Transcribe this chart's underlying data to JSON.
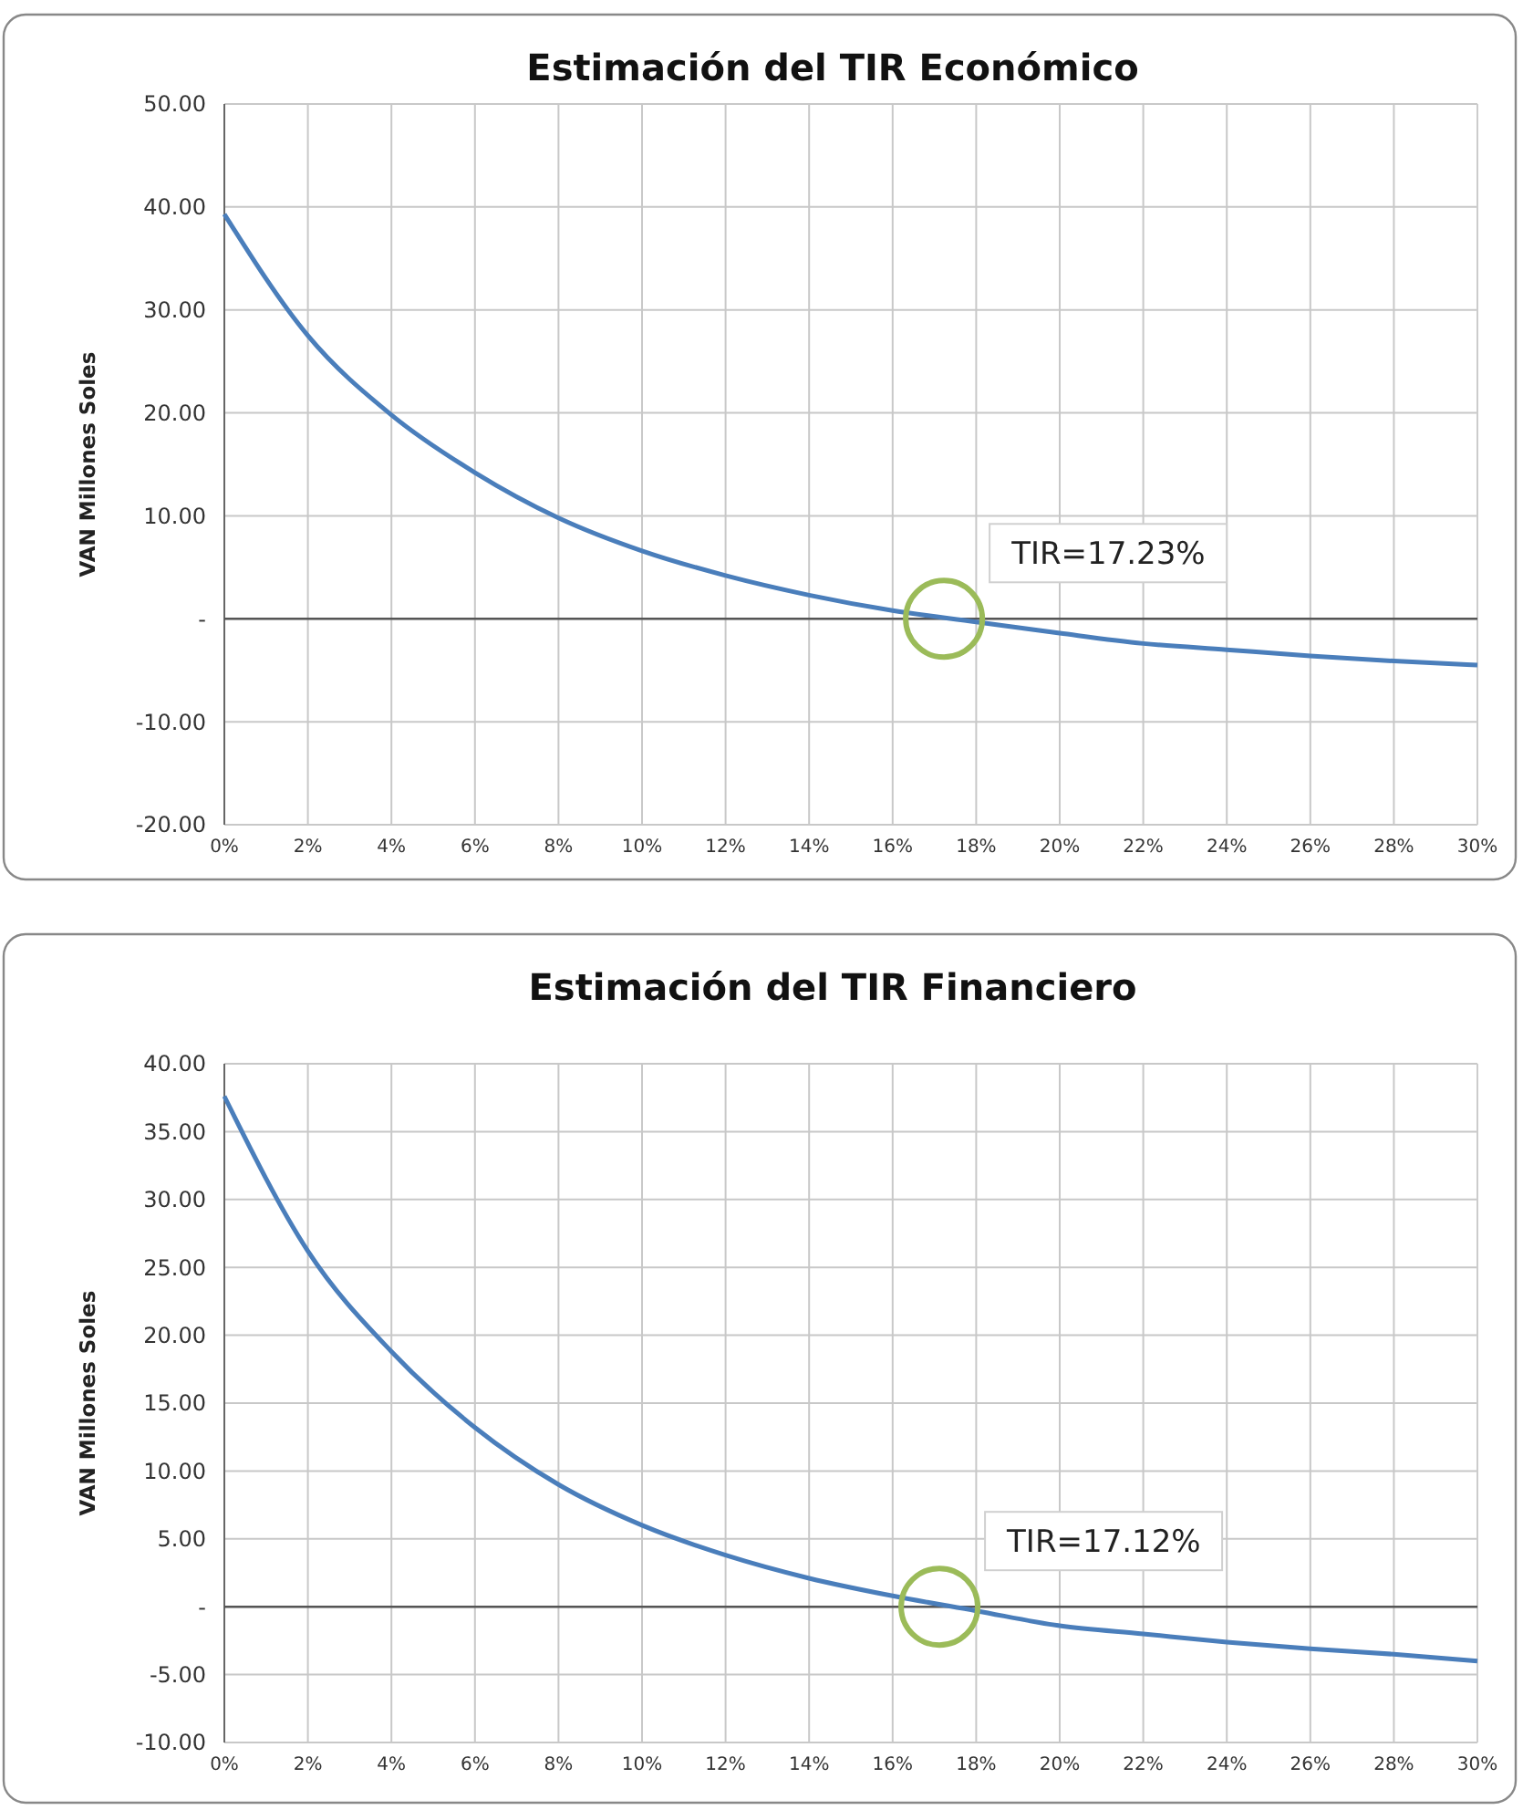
{
  "chart_data": [
    {
      "type": "line",
      "title": "Estimación del TIR Económico",
      "ylabel": "VAN Millones Soles",
      "x": [
        0,
        2,
        4,
        6,
        8,
        10,
        12,
        14,
        16,
        18,
        20,
        22,
        24,
        26,
        28,
        30
      ],
      "series": [
        {
          "color": "#4a7ebb",
          "values": [
            39.3,
            27.5,
            19.8,
            14.2,
            9.8,
            6.6,
            4.2,
            2.3,
            0.8,
            -0.3,
            -1.4,
            -2.4,
            -3.0,
            -3.6,
            -4.1,
            -4.5
          ]
        }
      ],
      "xlim": [
        0,
        30
      ],
      "xticks": [
        {
          "value": 0,
          "label": "0%"
        },
        {
          "value": 2,
          "label": "2%"
        },
        {
          "value": 4,
          "label": "4%"
        },
        {
          "value": 6,
          "label": "6%"
        },
        {
          "value": 8,
          "label": "8%"
        },
        {
          "value": 10,
          "label": "10%"
        },
        {
          "value": 12,
          "label": "12%"
        },
        {
          "value": 14,
          "label": "14%"
        },
        {
          "value": 16,
          "label": "16%"
        },
        {
          "value": 18,
          "label": "18%"
        },
        {
          "value": 20,
          "label": "20%"
        },
        {
          "value": 22,
          "label": "22%"
        },
        {
          "value": 24,
          "label": "24%"
        },
        {
          "value": 26,
          "label": "26%"
        },
        {
          "value": 28,
          "label": "28%"
        },
        {
          "value": 30,
          "label": "30%"
        }
      ],
      "ylim": [
        -20,
        50
      ],
      "yticks": [
        {
          "value": -20,
          "label": "-20.00"
        },
        {
          "value": -10,
          "label": "-10.00"
        },
        {
          "value": 0,
          "label": "-"
        },
        {
          "value": 10,
          "label": "10.00"
        },
        {
          "value": 20,
          "label": "20.00"
        },
        {
          "value": 30,
          "label": "30.00"
        },
        {
          "value": 40,
          "label": "40.00"
        },
        {
          "value": 50,
          "label": "50.00"
        }
      ],
      "grid": true,
      "marker": "none",
      "line_style": "solid",
      "annotations": [
        {
          "text": "TIR=17.23%",
          "x": 17.23,
          "y": 0
        }
      ]
    },
    {
      "type": "line",
      "title": "Estimación del TIR Financiero",
      "ylabel": "VAN Millones Soles",
      "x": [
        0,
        2,
        4,
        6,
        8,
        10,
        12,
        14,
        16,
        18,
        20,
        22,
        24,
        26,
        28,
        30
      ],
      "series": [
        {
          "color": "#4a7ebb",
          "values": [
            37.6,
            26.2,
            18.8,
            13.2,
            9.0,
            6.0,
            3.8,
            2.1,
            0.8,
            -0.3,
            -1.4,
            -2.0,
            -2.6,
            -3.1,
            -3.5,
            -4.0
          ]
        }
      ],
      "xlim": [
        0,
        30
      ],
      "xticks": [
        {
          "value": 0,
          "label": "0%"
        },
        {
          "value": 2,
          "label": "2%"
        },
        {
          "value": 4,
          "label": "4%"
        },
        {
          "value": 6,
          "label": "6%"
        },
        {
          "value": 8,
          "label": "8%"
        },
        {
          "value": 10,
          "label": "10%"
        },
        {
          "value": 12,
          "label": "12%"
        },
        {
          "value": 14,
          "label": "14%"
        },
        {
          "value": 16,
          "label": "16%"
        },
        {
          "value": 18,
          "label": "18%"
        },
        {
          "value": 20,
          "label": "20%"
        },
        {
          "value": 22,
          "label": "22%"
        },
        {
          "value": 24,
          "label": "24%"
        },
        {
          "value": 26,
          "label": "26%"
        },
        {
          "value": 28,
          "label": "28%"
        },
        {
          "value": 30,
          "label": "30%"
        }
      ],
      "ylim": [
        -10,
        40
      ],
      "yticks": [
        {
          "value": -10,
          "label": "-10.00"
        },
        {
          "value": -5,
          "label": "-5.00"
        },
        {
          "value": 0,
          "label": "-"
        },
        {
          "value": 5,
          "label": "5.00"
        },
        {
          "value": 10,
          "label": "10.00"
        },
        {
          "value": 15,
          "label": "15.00"
        },
        {
          "value": 20,
          "label": "20.00"
        },
        {
          "value": 25,
          "label": "25.00"
        },
        {
          "value": 30,
          "label": "30.00"
        },
        {
          "value": 35,
          "label": "35.00"
        },
        {
          "value": 40,
          "label": "40.00"
        }
      ],
      "grid": true,
      "marker": "none",
      "line_style": "solid",
      "annotations": [
        {
          "text": "TIR=17.12%",
          "x": 17.12,
          "y": 0
        }
      ]
    }
  ]
}
